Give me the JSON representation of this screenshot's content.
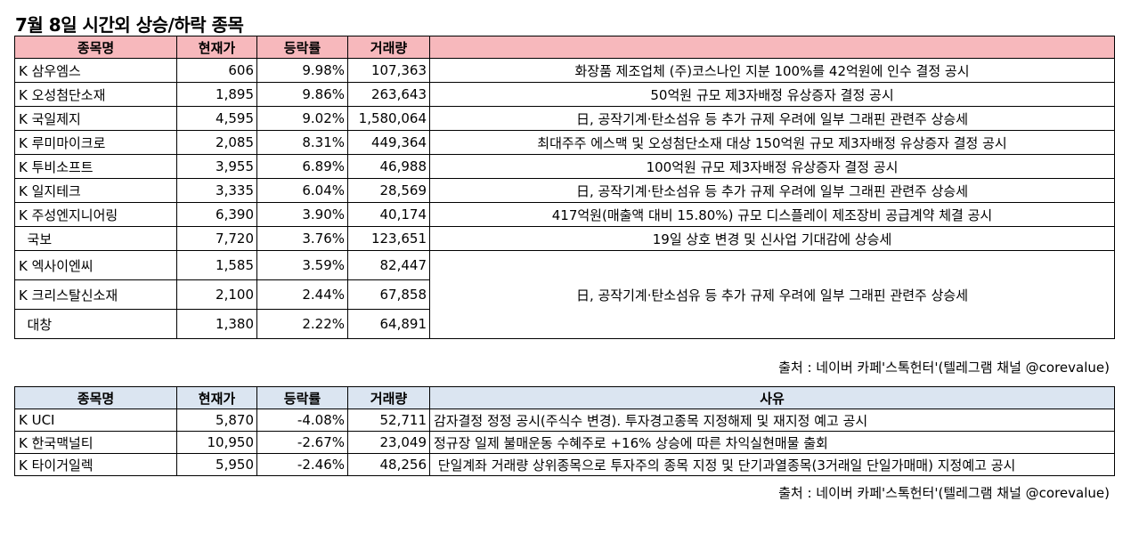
{
  "title": "7월 8일  시간외 상승/하락 종목",
  "rise_table": {
    "headers": [
      "종목명",
      "현재가",
      "등락률",
      "거래량",
      ""
    ],
    "rows": [
      {
        "name": "K 삼우엠스",
        "price": "606",
        "rate": "9.98%",
        "volume": "107,363",
        "reason": "화장품 제조업체 (주)코스나인 지분 100%를 42억원에 인수 결정 공시"
      },
      {
        "name": "K 오성첨단소재",
        "price": "1,895",
        "rate": "9.86%",
        "volume": "263,643",
        "reason": "50억원 규모 제3자배정 유상증자 결정 공시"
      },
      {
        "name": "K 국일제지",
        "price": "4,595",
        "rate": "9.02%",
        "volume": "1,580,064",
        "reason": "日, 공작기계·탄소섬유 등 추가 규제 우려에  일부 그래핀 관련주 상승세"
      },
      {
        "name": "K 루미마이크로",
        "price": "2,085",
        "rate": "8.31%",
        "volume": "449,364",
        "reason": "최대주주 에스맥 및 오성첨단소재 대상 150억원 규모 제3자배정 유상증자 결정 공시"
      },
      {
        "name": "K 투비소프트",
        "price": "3,955",
        "rate": "6.89%",
        "volume": "46,988",
        "reason": "100억원 규모 제3자배정 유상증자 결정 공시"
      },
      {
        "name": "K 일지테크",
        "price": "3,335",
        "rate": "6.04%",
        "volume": "28,569",
        "reason": "日, 공작기계·탄소섬유 등 추가 규제 우려에  일부 그래핀 관련주 상승세"
      },
      {
        "name": "K 주성엔지니어링",
        "price": "6,390",
        "rate": "3.90%",
        "volume": "40,174",
        "reason": "417억원(매출액 대비 15.80%) 규모 디스플레이 제조장비 공급계약 체결 공시"
      },
      {
        "name": "  국보",
        "price": "7,720",
        "rate": "3.76%",
        "volume": "123,651",
        "reason": "19일 상호 변경 및 신사업 기대감에 상승세"
      },
      {
        "name": "K 엑사이엔씨",
        "price": "1,585",
        "rate": "3.59%",
        "volume": "82,447"
      },
      {
        "name": "K 크리스탈신소재",
        "price": "2,100",
        "rate": "2.44%",
        "volume": "67,858"
      },
      {
        "name": "  대창",
        "price": "1,380",
        "rate": "2.22%",
        "volume": "64,891"
      }
    ],
    "merged_reason": "日, 공작기계·탄소섬유 등 추가 규제 우려에  일부 그래핀 관련주 상승세"
  },
  "source_1": "출처 : 네이버 카페'스톡헌터'(텔레그램 채널 @corevalue)",
  "fall_table": {
    "headers": [
      "종목명",
      "현재가",
      "등락률",
      "거래량",
      "사유"
    ],
    "rows": [
      {
        "name": "K UCI",
        "price": "5,870",
        "rate": "-4.08%",
        "volume": "52,711",
        "reason": "감자결정 정정 공시(주식수 변경). 투자경고종목 지정해제 및 재지정 예고 공시"
      },
      {
        "name": "K 한국맥널티",
        "price": "10,950",
        "rate": "-2.67%",
        "volume": "23,049",
        "reason": "정규장 일제 불매운동 수혜주로 +16% 상승에 따른 차익실현매물 출회"
      },
      {
        "name": "K 타이거일렉",
        "price": "5,950",
        "rate": "-2.46%",
        "volume": "48,256",
        "reason": " 단일계좌 거래량 상위종목으로 투자주의 종목 지정 및 단기과열종목(3거래일 단일가매매) 지정예고 공시"
      }
    ]
  },
  "source_2": "출처 : 네이버 카페'스톡헌터'(텔레그램 채널 @corevalue)"
}
